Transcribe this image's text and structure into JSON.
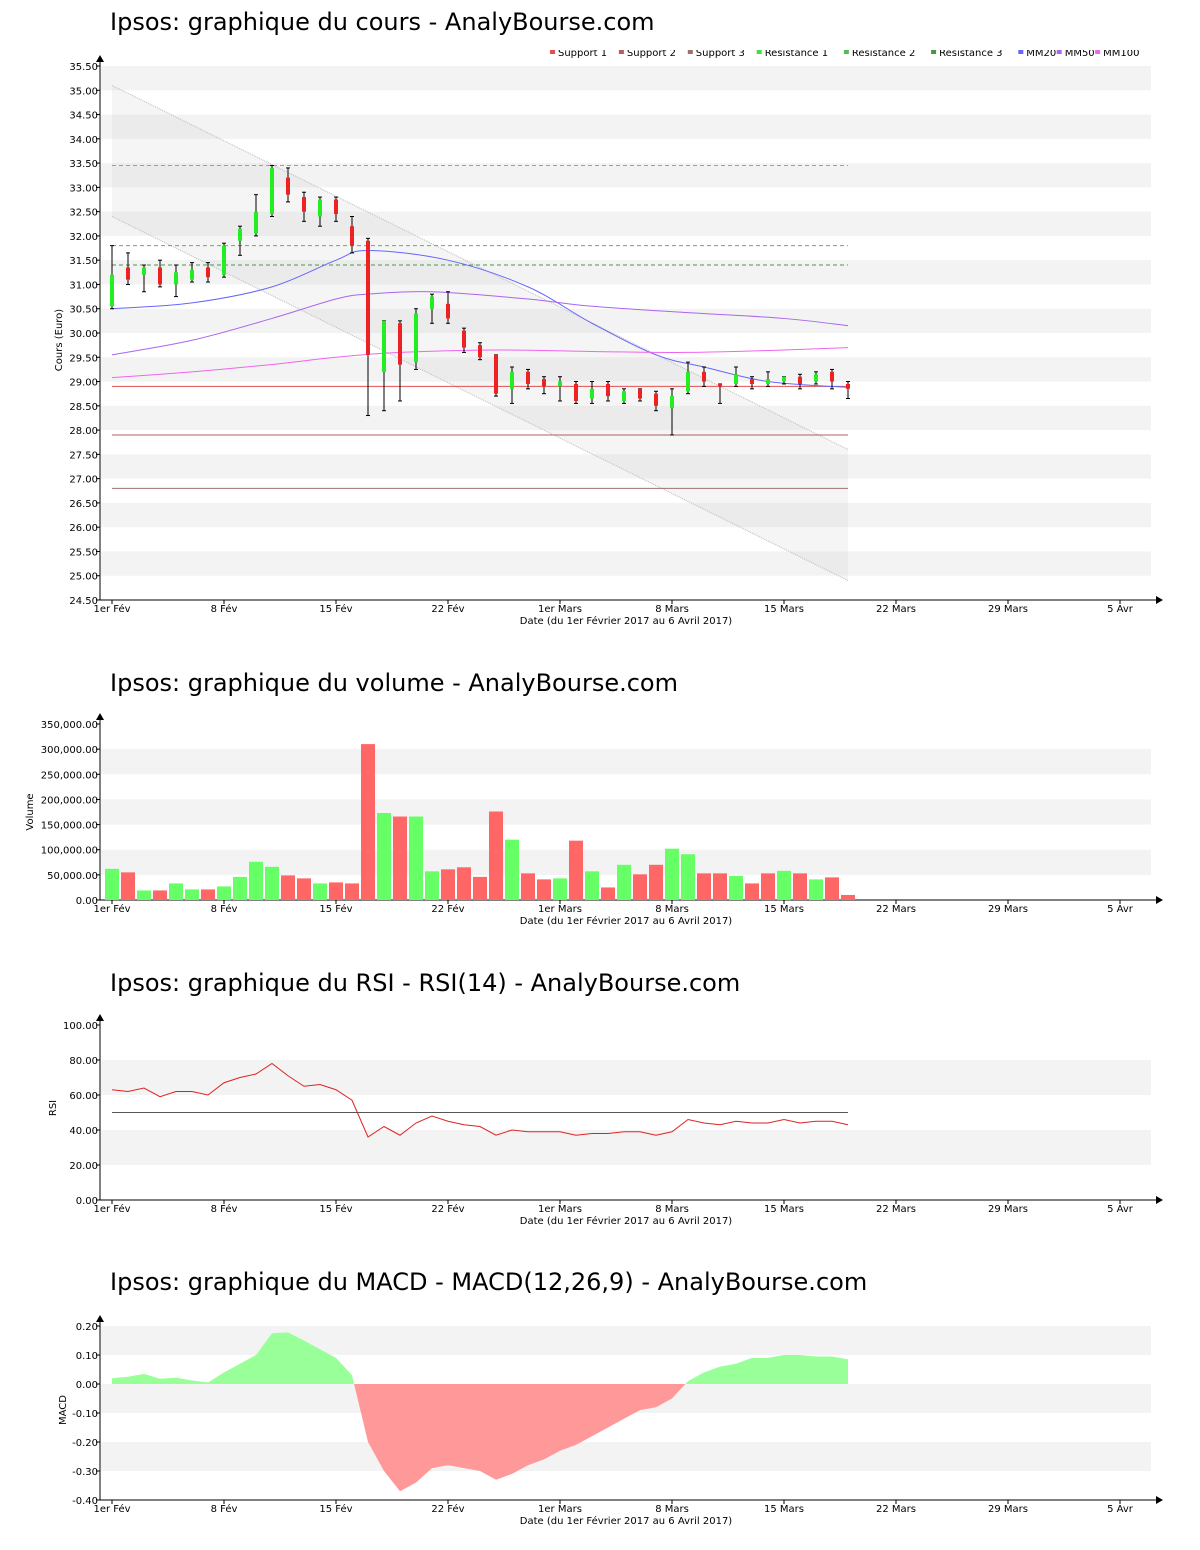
{
  "chart_data": [
    {
      "type": "candlestick",
      "title": "Ipsos: graphique du cours - AnalyBourse.com",
      "ylabel": "Cours (Euro)",
      "xlabel": "Date (du 1er Février 2017 au 6 Avril 2017)",
      "ylim": [
        24.5,
        35.5
      ],
      "yticks": [
        "24.50",
        "25.00",
        "25.50",
        "26.00",
        "26.50",
        "27.00",
        "27.50",
        "28.00",
        "28.50",
        "29.00",
        "29.50",
        "30.00",
        "30.50",
        "31.00",
        "31.50",
        "32.00",
        "32.50",
        "33.00",
        "33.50",
        "34.00",
        "34.50",
        "35.00",
        "35.50"
      ],
      "xticks": [
        {
          "day": 0,
          "label": "1er Fév"
        },
        {
          "day": 7,
          "label": "8 Fév"
        },
        {
          "day": 14,
          "label": "15 Fév"
        },
        {
          "day": 21,
          "label": "22 Fév"
        },
        {
          "day": 28,
          "label": "1er Mars"
        },
        {
          "day": 35,
          "label": "8 Mars"
        },
        {
          "day": 42,
          "label": "15 Mars"
        },
        {
          "day": 49,
          "label": "22 Mars"
        },
        {
          "day": 56,
          "label": "29 Mars"
        },
        {
          "day": 63,
          "label": "5 Avr"
        }
      ],
      "legend": [
        {
          "name": "Support 1",
          "color": "#e05050"
        },
        {
          "name": "Support 2",
          "color": "#b06060"
        },
        {
          "name": "Support 3",
          "color": "#a07070"
        },
        {
          "name": "Résistance 1",
          "color": "#44dd44"
        },
        {
          "name": "Résistance 2",
          "color": "#55bb55"
        },
        {
          "name": "Résistance 3",
          "color": "#449944"
        },
        {
          "name": "MM20",
          "color": "#6666ff"
        },
        {
          "name": "MM50",
          "color": "#aa66ee"
        },
        {
          "name": "MM100",
          "color": "#ee66ee"
        }
      ],
      "levels": {
        "support": [
          28.9,
          27.9,
          26.8
        ],
        "resistance": [
          33.45,
          31.8,
          31.4
        ]
      },
      "candles": [
        {
          "day": 0,
          "open": 30.55,
          "high": 31.8,
          "low": 30.5,
          "close": 31.2
        },
        {
          "day": 1,
          "open": 31.35,
          "high": 31.65,
          "low": 31.0,
          "close": 31.1
        },
        {
          "day": 2,
          "open": 31.2,
          "high": 31.4,
          "low": 30.85,
          "close": 31.35
        },
        {
          "day": 3,
          "open": 31.35,
          "high": 31.5,
          "low": 30.95,
          "close": 31.0
        },
        {
          "day": 4,
          "open": 31.0,
          "high": 31.4,
          "low": 30.75,
          "close": 31.25
        },
        {
          "day": 5,
          "open": 31.1,
          "high": 31.45,
          "low": 31.05,
          "close": 31.3
        },
        {
          "day": 6,
          "open": 31.35,
          "high": 31.45,
          "low": 31.05,
          "close": 31.15
        },
        {
          "day": 7,
          "open": 31.2,
          "high": 31.85,
          "low": 31.15,
          "close": 31.8
        },
        {
          "day": 8,
          "open": 31.9,
          "high": 32.2,
          "low": 31.6,
          "close": 32.15
        },
        {
          "day": 9,
          "open": 32.05,
          "high": 32.85,
          "low": 32.0,
          "close": 32.5
        },
        {
          "day": 10,
          "open": 32.45,
          "high": 33.45,
          "low": 32.4,
          "close": 33.4
        },
        {
          "day": 11,
          "open": 33.2,
          "high": 33.4,
          "low": 32.7,
          "close": 32.85
        },
        {
          "day": 12,
          "open": 32.8,
          "high": 32.9,
          "low": 32.3,
          "close": 32.5
        },
        {
          "day": 13,
          "open": 32.4,
          "high": 32.8,
          "low": 32.2,
          "close": 32.75
        },
        {
          "day": 14,
          "open": 32.75,
          "high": 32.8,
          "low": 32.3,
          "close": 32.45
        },
        {
          "day": 15,
          "open": 32.2,
          "high": 32.4,
          "low": 31.65,
          "close": 31.8
        },
        {
          "day": 16,
          "open": 31.9,
          "high": 31.95,
          "low": 28.3,
          "close": 29.55
        },
        {
          "day": 17,
          "open": 29.2,
          "high": 30.25,
          "low": 28.4,
          "close": 30.25
        },
        {
          "day": 18,
          "open": 30.2,
          "high": 30.25,
          "low": 28.6,
          "close": 29.35
        },
        {
          "day": 19,
          "open": 29.4,
          "high": 30.5,
          "low": 29.25,
          "close": 30.4
        },
        {
          "day": 20,
          "open": 30.5,
          "high": 30.8,
          "low": 30.2,
          "close": 30.75
        },
        {
          "day": 21,
          "open": 30.6,
          "high": 30.85,
          "low": 30.2,
          "close": 30.3
        },
        {
          "day": 22,
          "open": 30.05,
          "high": 30.1,
          "low": 29.6,
          "close": 29.7
        },
        {
          "day": 23,
          "open": 29.75,
          "high": 29.8,
          "low": 29.45,
          "close": 29.5
        },
        {
          "day": 24,
          "open": 29.55,
          "high": 29.55,
          "low": 28.7,
          "close": 28.75
        },
        {
          "day": 25,
          "open": 28.85,
          "high": 29.3,
          "low": 28.55,
          "close": 29.2
        },
        {
          "day": 26,
          "open": 29.2,
          "high": 29.25,
          "low": 28.85,
          "close": 28.95
        },
        {
          "day": 27,
          "open": 29.05,
          "high": 29.1,
          "low": 28.75,
          "close": 28.9
        },
        {
          "day": 28,
          "open": 28.9,
          "high": 29.1,
          "low": 28.6,
          "close": 29.0
        },
        {
          "day": 29,
          "open": 28.95,
          "high": 29.0,
          "low": 28.55,
          "close": 28.6
        },
        {
          "day": 30,
          "open": 28.65,
          "high": 29.0,
          "low": 28.55,
          "close": 28.85
        },
        {
          "day": 31,
          "open": 28.95,
          "high": 29.0,
          "low": 28.6,
          "close": 28.7
        },
        {
          "day": 32,
          "open": 28.6,
          "high": 28.85,
          "low": 28.55,
          "close": 28.8
        },
        {
          "day": 33,
          "open": 28.85,
          "high": 28.85,
          "low": 28.6,
          "close": 28.65
        },
        {
          "day": 34,
          "open": 28.75,
          "high": 28.8,
          "low": 28.4,
          "close": 28.5
        },
        {
          "day": 35,
          "open": 28.45,
          "high": 28.85,
          "low": 27.9,
          "close": 28.7
        },
        {
          "day": 36,
          "open": 28.8,
          "high": 29.4,
          "low": 28.75,
          "close": 29.2
        },
        {
          "day": 37,
          "open": 29.2,
          "high": 29.3,
          "low": 28.9,
          "close": 29.0
        },
        {
          "day": 38,
          "open": 28.95,
          "high": 28.95,
          "low": 28.55,
          "close": 28.9
        },
        {
          "day": 39,
          "open": 28.95,
          "high": 29.3,
          "low": 28.9,
          "close": 29.15
        },
        {
          "day": 40,
          "open": 29.05,
          "high": 29.1,
          "low": 28.85,
          "close": 28.95
        },
        {
          "day": 41,
          "open": 28.95,
          "high": 29.2,
          "low": 28.9,
          "close": 29.05
        },
        {
          "day": 42,
          "open": 29.0,
          "high": 29.1,
          "low": 28.95,
          "close": 29.1
        },
        {
          "day": 43,
          "open": 29.1,
          "high": 29.15,
          "low": 28.85,
          "close": 28.95
        },
        {
          "day": 44,
          "open": 29.0,
          "high": 29.2,
          "low": 28.95,
          "close": 29.15
        },
        {
          "day": 45,
          "open": 29.2,
          "high": 29.25,
          "low": 28.85,
          "close": 29.0
        },
        {
          "day": 46,
          "open": 28.95,
          "high": 29.0,
          "low": 28.65,
          "close": 28.85
        }
      ],
      "series": [
        {
          "name": "MM20",
          "color": "#6666ff",
          "points": [
            [
              0,
              30.5
            ],
            [
              5,
              30.62
            ],
            [
              10,
              30.95
            ],
            [
              14,
              31.5
            ],
            [
              16,
              31.7
            ],
            [
              21,
              31.5
            ],
            [
              26,
              30.95
            ],
            [
              30,
              30.2
            ],
            [
              34,
              29.55
            ],
            [
              37,
              29.3
            ],
            [
              41,
              29.0
            ],
            [
              46,
              28.88
            ]
          ]
        },
        {
          "name": "MM50",
          "color": "#aa66ee",
          "points": [
            [
              0,
              29.55
            ],
            [
              5,
              29.85
            ],
            [
              10,
              30.3
            ],
            [
              14,
              30.7
            ],
            [
              16,
              30.8
            ],
            [
              20,
              30.85
            ],
            [
              26,
              30.7
            ],
            [
              30,
              30.55
            ],
            [
              36,
              30.42
            ],
            [
              42,
              30.3
            ],
            [
              46,
              30.15
            ]
          ]
        },
        {
          "name": "MM100",
          "color": "#ee66ee",
          "points": [
            [
              0,
              29.08
            ],
            [
              5,
              29.2
            ],
            [
              10,
              29.35
            ],
            [
              14,
              29.5
            ],
            [
              18,
              29.6
            ],
            [
              24,
              29.65
            ],
            [
              30,
              29.62
            ],
            [
              36,
              29.6
            ],
            [
              42,
              29.65
            ],
            [
              46,
              29.7
            ]
          ]
        }
      ],
      "trend_channel": {
        "upper": [
          [
            0,
            35.1
          ],
          [
            46,
            27.6
          ]
        ],
        "lower": [
          [
            0,
            32.4
          ],
          [
            46,
            24.9
          ]
        ]
      }
    },
    {
      "type": "bar",
      "title": "Ipsos: graphique du volume - AnalyBourse.com",
      "ylabel": "Volume",
      "xlabel": "Date (du 1er Février 2017 au 6 Avril 2017)",
      "ylim": [
        0,
        350000
      ],
      "yticks": [
        "0.00",
        "50,000.00",
        "100,000.00",
        "150,000.00",
        "200,000.00",
        "250,000.00",
        "300,000.00",
        "350,000.00"
      ],
      "values": [
        62000,
        55000,
        19000,
        19000,
        33000,
        21000,
        21000,
        27000,
        46000,
        76000,
        66000,
        49000,
        43000,
        33000,
        35000,
        33000,
        310000,
        173000,
        166000,
        166000,
        57000,
        61000,
        65000,
        46000,
        176000,
        120000,
        53000,
        41000,
        43000,
        118000,
        57000,
        25000,
        70000,
        51000,
        70000,
        102000,
        91000,
        53000,
        53000,
        48000,
        33000,
        53000,
        58000,
        53000,
        41000,
        45000,
        10000
      ],
      "up": [
        true,
        false,
        true,
        false,
        true,
        true,
        false,
        true,
        true,
        true,
        true,
        false,
        false,
        true,
        false,
        false,
        false,
        true,
        false,
        true,
        true,
        false,
        false,
        false,
        false,
        true,
        false,
        false,
        true,
        false,
        true,
        false,
        true,
        false,
        false,
        true,
        true,
        false,
        false,
        true,
        false,
        false,
        true,
        false,
        true,
        false,
        false
      ]
    },
    {
      "type": "line",
      "title": "Ipsos: graphique du RSI - RSI(14) - AnalyBourse.com",
      "ylabel": "RSI",
      "xlabel": "Date (du 1er Février 2017 au 6 Avril 2017)",
      "ylim": [
        0,
        100
      ],
      "yticks": [
        "0.00",
        "20.00",
        "40.00",
        "60.00",
        "80.00",
        "100.00"
      ],
      "reference": 50,
      "values": [
        63,
        62,
        64,
        59,
        62,
        62,
        60,
        67,
        70,
        72,
        78,
        71,
        65,
        66,
        63,
        57,
        36,
        42,
        37,
        44,
        48,
        45,
        43,
        42,
        37,
        40,
        39,
        39,
        39,
        37,
        38,
        38,
        39,
        39,
        37,
        39,
        46,
        44,
        43,
        45,
        44,
        44,
        46,
        44,
        45,
        45,
        43
      ]
    },
    {
      "type": "area",
      "title": "Ipsos: graphique du MACD - MACD(12,26,9) - AnalyBourse.com",
      "ylabel": "MACD",
      "xlabel": "Date (du 1er Février 2017 au 6 Avril 2017)",
      "ylim": [
        -0.4,
        0.2
      ],
      "yticks": [
        "-0.40",
        "-0.30",
        "-0.20",
        "-0.10",
        "0.00",
        "0.10",
        "0.20"
      ],
      "values": [
        0.02,
        0.025,
        0.035,
        0.018,
        0.022,
        0.012,
        0.005,
        0.04,
        0.07,
        0.1,
        0.175,
        0.178,
        0.15,
        0.12,
        0.09,
        0.03,
        -0.2,
        -0.3,
        -0.37,
        -0.34,
        -0.29,
        -0.28,
        -0.29,
        -0.3,
        -0.33,
        -0.31,
        -0.28,
        -0.26,
        -0.23,
        -0.21,
        -0.18,
        -0.15,
        -0.12,
        -0.09,
        -0.08,
        -0.05,
        0.01,
        0.04,
        0.06,
        0.07,
        0.09,
        0.09,
        0.1,
        0.1,
        0.095,
        0.095,
        0.085
      ]
    }
  ]
}
